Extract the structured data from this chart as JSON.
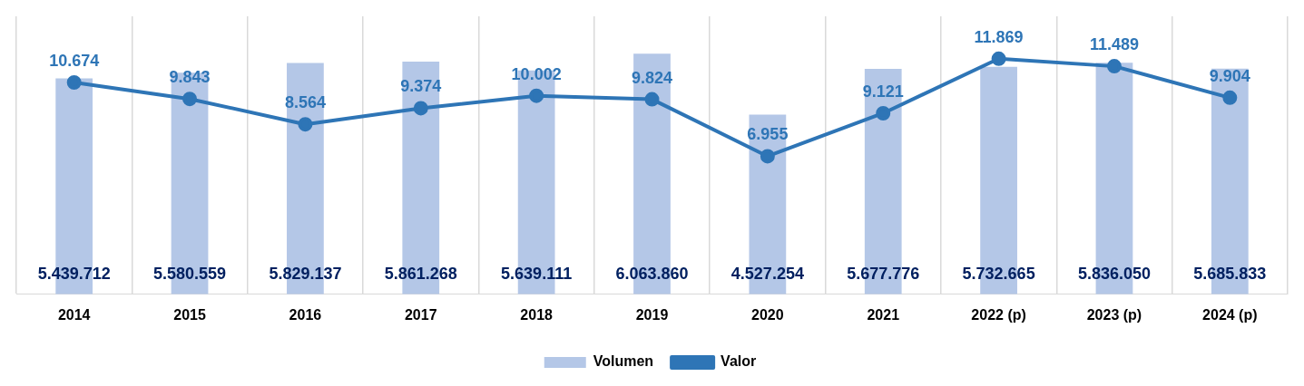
{
  "chart_data": {
    "type": "bar",
    "categories": [
      "2014",
      "2015",
      "2016",
      "2017",
      "2018",
      "2019",
      "2020",
      "2021",
      "2022 (p)",
      "2023 (p)",
      "2024 (p)"
    ],
    "series": [
      {
        "name": "Volumen",
        "color": "#b4c7e7",
        "values": [
          5439712,
          5580559,
          5829137,
          5861268,
          5639111,
          6063860,
          4527254,
          5677776,
          5732665,
          5836050,
          5685833
        ],
        "value_labels": [
          "5.439.712",
          "5.580.559",
          "5.829.137",
          "5.861.268",
          "5.639.111",
          "6.063.860",
          "4.527.254",
          "5.677.776",
          "5.732.665",
          "5.836.050",
          "5.685.833"
        ]
      },
      {
        "name": "Valor",
        "type": "line",
        "axis": "y2",
        "color": "#2e75b6",
        "values": [
          10674,
          9843,
          8564,
          9374,
          10002,
          9824,
          6955,
          9121,
          11869,
          11489,
          9904
        ],
        "value_labels": [
          "10.674",
          "9.843",
          "8.564",
          "9.374",
          "10.002",
          "9.824",
          "6.955",
          "9.121",
          "11.869",
          "11.489",
          "9.904"
        ]
      }
    ],
    "grid": "x",
    "legend": "bottom",
    "marker": "circle",
    "tick_labels": "x"
  }
}
